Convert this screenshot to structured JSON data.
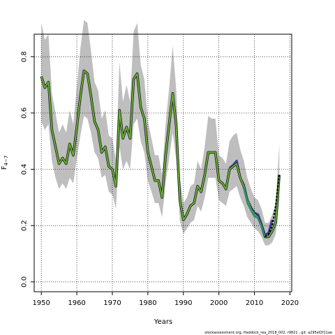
{
  "chart_data": {
    "type": "line",
    "xlabel": "Years",
    "ylabel": "F",
    "ylabel_subscript": "4−7",
    "footnote": "stockassessment.org, Haddock_rea_2018_002, r9821 , git: a295ef2f11ae",
    "xlim": [
      1948,
      2020.5
    ],
    "ylim": [
      -0.035,
      0.88
    ],
    "xticks": [
      1950,
      1960,
      1970,
      1980,
      1990,
      2000,
      2010,
      2020
    ],
    "yticks": [
      0.0,
      0.2,
      0.4,
      0.6,
      0.8
    ],
    "ytick_labels": [
      "0.0",
      "0.2",
      "0.4",
      "0.6",
      "0.8"
    ],
    "grid": true,
    "colors": {
      "band": "#bebebe",
      "line_green": "#66b032",
      "line_dark": "#1c1c1c",
      "line_blue": "#3f3fa0",
      "line_teal": "#2a8a7a",
      "line_dashed": "#000000"
    },
    "years": [
      1950,
      1951,
      1952,
      1953,
      1954,
      1955,
      1956,
      1957,
      1958,
      1959,
      1960,
      1961,
      1962,
      1963,
      1964,
      1965,
      1966,
      1967,
      1968,
      1969,
      1970,
      1971,
      1972,
      1973,
      1974,
      1975,
      1976,
      1977,
      1978,
      1979,
      1980,
      1981,
      1982,
      1983,
      1984,
      1985,
      1986,
      1987,
      1988,
      1989,
      1990,
      1991,
      1992,
      1993,
      1994,
      1995,
      1996,
      1997,
      1998,
      1999,
      2000,
      2001,
      2002,
      2003,
      2004,
      2005,
      2006,
      2007,
      2008,
      2009,
      2010,
      2011,
      2012,
      2013,
      2014,
      2015,
      2016,
      2017
    ],
    "estimate": [
      0.73,
      0.69,
      0.71,
      0.54,
      0.48,
      0.42,
      0.44,
      0.42,
      0.49,
      0.45,
      0.55,
      0.66,
      0.75,
      0.74,
      0.66,
      0.57,
      0.54,
      0.46,
      0.48,
      0.41,
      0.4,
      0.34,
      0.61,
      0.51,
      0.55,
      0.51,
      0.72,
      0.74,
      0.62,
      0.58,
      0.46,
      0.41,
      0.36,
      0.36,
      0.3,
      0.45,
      0.56,
      0.67,
      0.55,
      0.29,
      0.22,
      0.24,
      0.27,
      0.28,
      0.34,
      0.32,
      0.38,
      0.46,
      0.46,
      0.46,
      0.36,
      0.35,
      0.33,
      0.4,
      0.41,
      0.42,
      0.37,
      0.34,
      0.29,
      0.26,
      0.24,
      0.23,
      0.2,
      0.16,
      0.16,
      0.18,
      0.21,
      0.38
    ],
    "lower": [
      0.57,
      0.54,
      0.56,
      0.43,
      0.37,
      0.33,
      0.35,
      0.33,
      0.37,
      0.35,
      0.44,
      0.52,
      0.59,
      0.58,
      0.53,
      0.46,
      0.44,
      0.37,
      0.38,
      0.32,
      0.31,
      0.26,
      0.48,
      0.4,
      0.43,
      0.4,
      0.56,
      0.58,
      0.5,
      0.46,
      0.36,
      0.32,
      0.28,
      0.28,
      0.23,
      0.35,
      0.44,
      0.53,
      0.43,
      0.22,
      0.17,
      0.19,
      0.21,
      0.22,
      0.27,
      0.25,
      0.3,
      0.37,
      0.37,
      0.37,
      0.29,
      0.28,
      0.27,
      0.32,
      0.33,
      0.34,
      0.3,
      0.27,
      0.23,
      0.21,
      0.19,
      0.18,
      0.16,
      0.13,
      0.13,
      0.14,
      0.17,
      0.29
    ],
    "upper": [
      0.92,
      0.86,
      0.88,
      0.67,
      0.6,
      0.53,
      0.56,
      0.53,
      0.61,
      0.56,
      0.69,
      0.83,
      0.93,
      0.92,
      0.82,
      0.71,
      0.68,
      0.58,
      0.61,
      0.52,
      0.51,
      0.43,
      0.78,
      0.64,
      0.7,
      0.64,
      0.89,
      0.92,
      0.77,
      0.72,
      0.57,
      0.51,
      0.45,
      0.45,
      0.38,
      0.56,
      0.69,
      0.84,
      0.68,
      0.37,
      0.28,
      0.3,
      0.34,
      0.35,
      0.43,
      0.4,
      0.48,
      0.59,
      0.58,
      0.58,
      0.45,
      0.44,
      0.42,
      0.5,
      0.52,
      0.53,
      0.47,
      0.43,
      0.37,
      0.33,
      0.3,
      0.29,
      0.26,
      0.21,
      0.21,
      0.24,
      0.28,
      0.49
    ],
    "blue_series": {
      "years": [
        2003,
        2004,
        2005,
        2006,
        2007,
        2008,
        2009,
        2010,
        2011,
        2012,
        2013,
        2014,
        2015
      ],
      "values": [
        0.405,
        0.415,
        0.43,
        0.37,
        0.345,
        0.29,
        0.265,
        0.245,
        0.24,
        0.205,
        0.165,
        0.175,
        0.22
      ]
    },
    "teal_series": {
      "years": [
        2007,
        2008,
        2009,
        2010,
        2011,
        2012,
        2013
      ],
      "values": [
        0.335,
        0.28,
        0.255,
        0.232,
        0.228,
        0.195,
        0.16
      ]
    },
    "dashed_series": {
      "years": [
        2013,
        2014,
        2015,
        2016,
        2017
      ],
      "values": [
        0.16,
        0.17,
        0.2,
        0.27,
        0.385
      ]
    }
  }
}
